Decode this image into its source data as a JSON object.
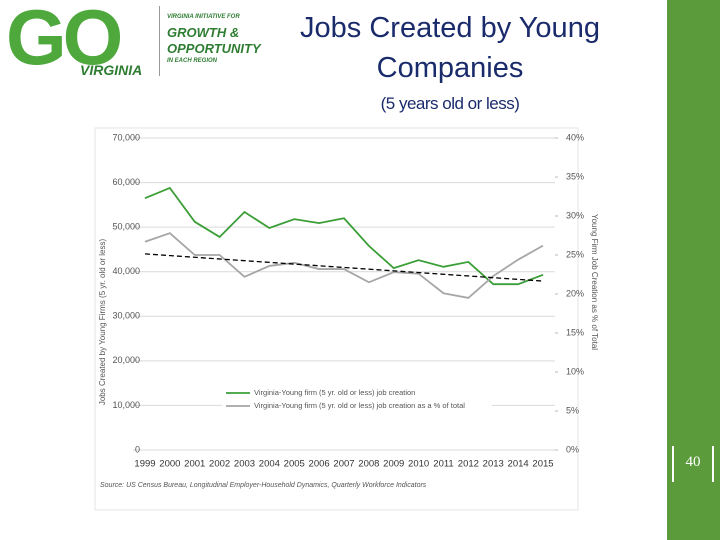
{
  "slide": {
    "logo": {
      "mark": "GO",
      "state": "VIRGINIA",
      "line1": "VIRGINIA INITIATIVE FOR",
      "line2": "GROWTH &",
      "line3": "OPPORTUNITY",
      "line4": "IN EACH REGION"
    },
    "page_number": "40"
  },
  "chart_data": {
    "type": "line",
    "title": "Jobs Created by Young Companies",
    "subtitle": "(5 years old or less)",
    "ylabel": "Jobs Created by Young Firms (5 yr. old or less)",
    "y2label": "Young Firm Job Creation as % of Total",
    "source": "Source: US Census Bureau, Longitudinal Employer-Household Dynamics, Quarterly Workforce Indicators",
    "categories": [
      "1999",
      "2000",
      "2001",
      "2002",
      "2003",
      "2004",
      "2005",
      "2006",
      "2007",
      "2008",
      "2009",
      "2010",
      "2011",
      "2012",
      "2013",
      "2014",
      "2015"
    ],
    "series": [
      {
        "name": "Virginia-Young firm (5 yr. old or less) job creation",
        "color": "#3c9e37",
        "values": [
          56500,
          58800,
          51200,
          47800,
          53400,
          49800,
          51800,
          50900,
          52000,
          45800,
          40800,
          42600,
          41100,
          42200,
          37200,
          37200,
          39300
        ]
      },
      {
        "name": "Virginia-Young firm (5 yr. old or less) job creation as a % of total",
        "color": "#a6a6a6",
        "axis": "y2",
        "values": [
          26.7,
          27.8,
          25.0,
          25.0,
          22.2,
          23.6,
          24.0,
          23.2,
          23.2,
          21.5,
          22.8,
          22.6,
          20.1,
          19.5,
          22.3,
          24.4,
          26.2
        ]
      }
    ],
    "trendline": {
      "values": [
        44000,
        37900
      ],
      "color": "#000000",
      "dashed": true
    },
    "ylim": [
      0,
      70000
    ],
    "yticks": [
      0,
      {
        "value": 10000,
        "label": "10,000"
      },
      {
        "value": 20000,
        "label": "20,000"
      },
      {
        "value": 30000,
        "label": "30,000"
      },
      {
        "value": 40000,
        "label": "40,000"
      },
      {
        "value": 50000,
        "label": "50,000"
      },
      {
        "value": 60000,
        "label": "60,000"
      },
      {
        "value": 70000,
        "label": "70,000"
      }
    ],
    "y2lim": [
      0,
      40
    ],
    "y2ticks": [
      {
        "value": 0,
        "label": "0%"
      },
      {
        "value": 5,
        "label": "5%"
      },
      {
        "value": 10,
        "label": "10%"
      },
      {
        "value": 15,
        "label": "15%"
      },
      {
        "value": 20,
        "label": "20%"
      },
      {
        "value": 25,
        "label": "25%"
      },
      {
        "value": 30,
        "label": "30%"
      },
      {
        "value": 35,
        "label": "35%"
      },
      {
        "value": 40,
        "label": "40%"
      }
    ],
    "grid": true
  }
}
